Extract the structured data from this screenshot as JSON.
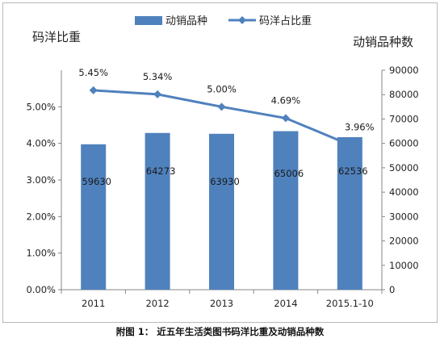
{
  "chart_data": {
    "type": "bar+line",
    "categories": [
      "2011",
      "2012",
      "2013",
      "2014",
      "2015.1-10"
    ],
    "series": [
      {
        "name": "动销品种",
        "type": "bar",
        "axis": "right",
        "values": [
          59630,
          64273,
          63930,
          65006,
          62536
        ],
        "color": "#4f81bd"
      },
      {
        "name": "码洋占比重",
        "type": "line",
        "axis": "left",
        "values": [
          5.45,
          5.34,
          5.0,
          4.69,
          3.96
        ],
        "color": "#4f81bd"
      }
    ],
    "bar_labels": [
      "59630",
      "64273",
      "63930",
      "65006",
      "62536"
    ],
    "line_labels": [
      "5.45%",
      "5.34%",
      "5.00%",
      "4.69%",
      "3.96%"
    ],
    "left_axis": {
      "title": "码洋比重",
      "ylim": [
        0,
        6
      ],
      "ticks": [
        0,
        1,
        2,
        3,
        4,
        5
      ],
      "tick_labels": [
        "0.00%",
        "1.00%",
        "2.00%",
        "3.00%",
        "4.00%",
        "5.00%"
      ]
    },
    "right_axis": {
      "title": "动销品种数",
      "ylim": [
        0,
        90000
      ],
      "ticks": [
        0,
        10000,
        20000,
        30000,
        40000,
        50000,
        60000,
        70000,
        80000,
        90000
      ],
      "tick_labels": [
        "0",
        "10000",
        "20000",
        "30000",
        "40000",
        "50000",
        "60000",
        "70000",
        "80000",
        "90000"
      ]
    },
    "legend_position": "top-center",
    "grid": false
  },
  "caption": "附图 1： 近五年生活类图书码洋比重及动销品种数"
}
